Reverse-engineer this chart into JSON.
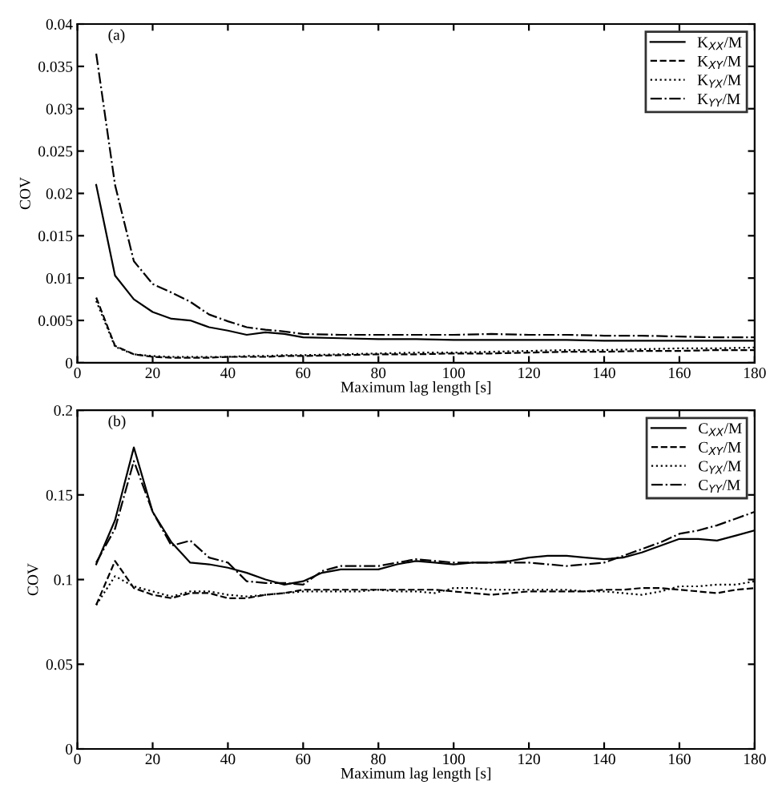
{
  "chart_data": [
    {
      "type": "line",
      "xlabel": "Maximum lag length [s]",
      "ylabel": "COV",
      "annotations": [
        "(a)"
      ],
      "legend": "top right",
      "grid": false,
      "marker": "none",
      "x": [
        5,
        10,
        15,
        20,
        25,
        30,
        35,
        40,
        45,
        50,
        55,
        60,
        70,
        80,
        90,
        100,
        110,
        120,
        130,
        140,
        150,
        160,
        170,
        180
      ],
      "xlim": [
        0,
        180
      ],
      "xticks": [
        0,
        20,
        40,
        60,
        80,
        100,
        120,
        140,
        160,
        180
      ],
      "ylim": [
        0,
        0.04
      ],
      "yticks": [
        0,
        0.005,
        0.01,
        0.015,
        0.02,
        0.025,
        0.03,
        0.035,
        0.04
      ],
      "series": [
        {
          "name": "K$_{XX}$/M",
          "color": "#000000",
          "line_style": "solid",
          "values": [
            0.021,
            0.0103,
            0.0075,
            0.006,
            0.0052,
            0.005,
            0.0042,
            0.0038,
            0.0033,
            0.0036,
            0.0034,
            0.003,
            0.0029,
            0.0028,
            0.0028,
            0.0027,
            0.0027,
            0.0027,
            0.0027,
            0.0026,
            0.0026,
            0.0026,
            0.0026,
            0.0026
          ]
        },
        {
          "name": "K$_{XY}$/M",
          "color": "#000000",
          "line_style": "dashed",
          "values": [
            0.0077,
            0.002,
            0.001,
            0.0007,
            0.0006,
            0.0006,
            0.0006,
            0.0007,
            0.0007,
            0.0007,
            0.0008,
            0.0008,
            0.0009,
            0.001,
            0.001,
            0.0011,
            0.0011,
            0.0012,
            0.0013,
            0.0013,
            0.0014,
            0.0014,
            0.0015,
            0.0015
          ]
        },
        {
          "name": "K$_{YX}$/M",
          "color": "#000000",
          "line_style": "dotted",
          "values": [
            0.0073,
            0.0019,
            0.001,
            0.0008,
            0.0007,
            0.0007,
            0.0007,
            0.0007,
            0.0008,
            0.0008,
            0.0009,
            0.0009,
            0.001,
            0.0011,
            0.0012,
            0.0012,
            0.0013,
            0.0014,
            0.0015,
            0.0015,
            0.0016,
            0.0017,
            0.0017,
            0.0018
          ]
        },
        {
          "name": "K$_{YY}$/M",
          "color": "#000000",
          "line_style": "dashdot",
          "values": [
            0.0365,
            0.021,
            0.012,
            0.0093,
            0.0083,
            0.0072,
            0.0057,
            0.0049,
            0.0042,
            0.0039,
            0.0037,
            0.0034,
            0.0033,
            0.0033,
            0.0033,
            0.0033,
            0.0034,
            0.0033,
            0.0033,
            0.0032,
            0.0032,
            0.0031,
            0.003,
            0.003
          ]
        }
      ]
    },
    {
      "type": "line",
      "xlabel": "Maximum lag length [s]",
      "ylabel": "COV",
      "annotations": [
        "(b)"
      ],
      "legend": "top right",
      "grid": false,
      "marker": "none",
      "x": [
        5,
        10,
        15,
        20,
        25,
        30,
        35,
        40,
        45,
        50,
        55,
        60,
        65,
        70,
        75,
        80,
        85,
        90,
        95,
        100,
        105,
        110,
        115,
        120,
        125,
        130,
        135,
        140,
        145,
        150,
        155,
        160,
        165,
        170,
        175,
        180
      ],
      "xlim": [
        0,
        180
      ],
      "xticks": [
        0,
        20,
        40,
        60,
        80,
        100,
        120,
        140,
        160,
        180
      ],
      "ylim": [
        0,
        0.2
      ],
      "yticks": [
        0,
        0.05,
        0.1,
        0.15,
        0.2
      ],
      "series": [
        {
          "name": "C$_{XX}$/M",
          "color": "#000000",
          "line_style": "solid",
          "values": [
            0.109,
            0.135,
            0.178,
            0.14,
            0.122,
            0.11,
            0.109,
            0.107,
            0.104,
            0.1,
            0.097,
            0.099,
            0.104,
            0.106,
            0.106,
            0.106,
            0.109,
            0.111,
            0.11,
            0.109,
            0.11,
            0.11,
            0.111,
            0.113,
            0.114,
            0.114,
            0.113,
            0.112,
            0.113,
            0.116,
            0.12,
            0.124,
            0.124,
            0.123,
            0.126,
            0.129
          ]
        },
        {
          "name": "C$_{XY}$/M",
          "color": "#000000",
          "line_style": "dashed",
          "values": [
            0.085,
            0.111,
            0.095,
            0.091,
            0.089,
            0.092,
            0.092,
            0.089,
            0.089,
            0.091,
            0.092,
            0.094,
            0.094,
            0.094,
            0.094,
            0.094,
            0.094,
            0.094,
            0.094,
            0.093,
            0.092,
            0.091,
            0.092,
            0.093,
            0.093,
            0.093,
            0.093,
            0.094,
            0.094,
            0.095,
            0.095,
            0.094,
            0.093,
            0.092,
            0.094,
            0.095
          ]
        },
        {
          "name": "C$_{YX}$/M",
          "color": "#000000",
          "line_style": "dotted",
          "values": [
            0.085,
            0.102,
            0.096,
            0.093,
            0.09,
            0.093,
            0.093,
            0.091,
            0.09,
            0.091,
            0.092,
            0.093,
            0.093,
            0.093,
            0.093,
            0.094,
            0.093,
            0.093,
            0.092,
            0.095,
            0.095,
            0.094,
            0.094,
            0.094,
            0.094,
            0.094,
            0.093,
            0.093,
            0.092,
            0.091,
            0.093,
            0.096,
            0.096,
            0.097,
            0.097,
            0.099
          ]
        },
        {
          "name": "C$_{YY}$/M",
          "color": "#000000",
          "line_style": "dashdot",
          "values": [
            0.11,
            0.13,
            0.17,
            0.14,
            0.12,
            0.123,
            0.113,
            0.11,
            0.099,
            0.098,
            0.098,
            0.097,
            0.105,
            0.108,
            0.108,
            0.108,
            0.11,
            0.112,
            0.111,
            0.11,
            0.11,
            0.11,
            0.11,
            0.11,
            0.109,
            0.108,
            0.109,
            0.11,
            0.114,
            0.118,
            0.122,
            0.127,
            0.129,
            0.132,
            0.136,
            0.14
          ]
        }
      ]
    }
  ]
}
